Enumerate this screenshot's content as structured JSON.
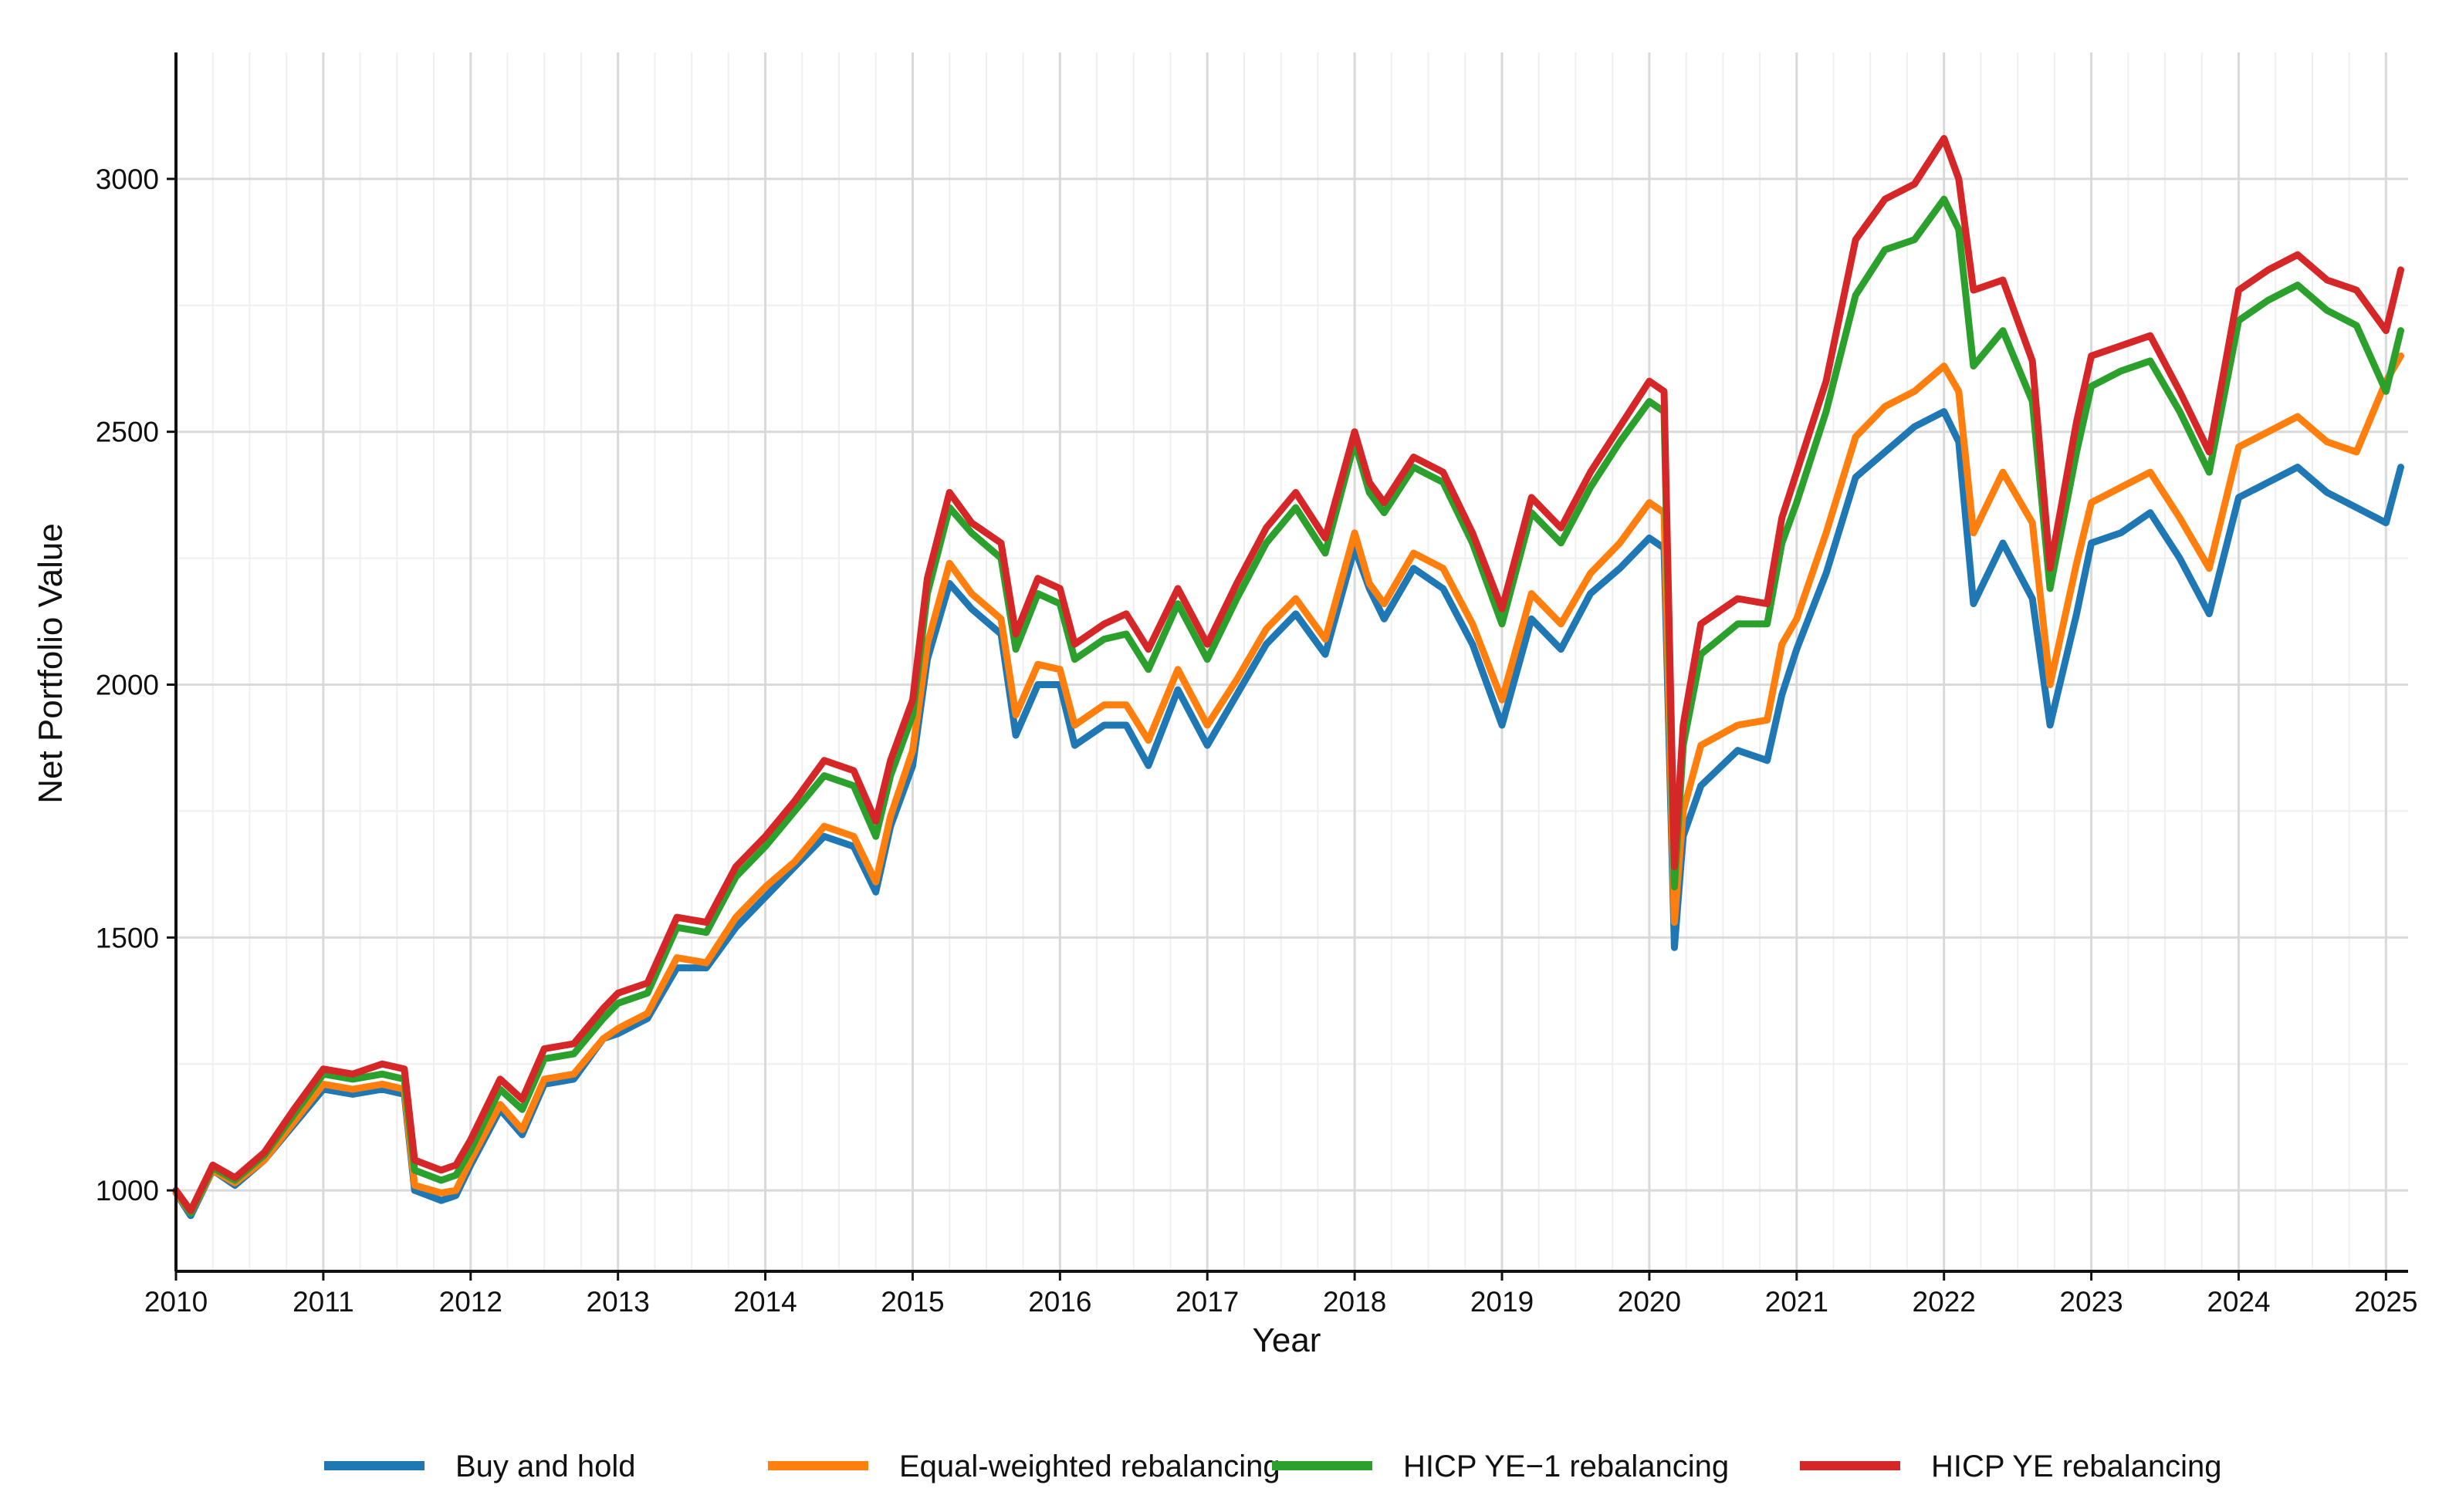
{
  "chart_data": {
    "type": "line",
    "title": "",
    "xlabel": "Year",
    "ylabel": "Net Portfolio Value",
    "xlim": [
      2010.0,
      2025.15
    ],
    "ylim": [
      840,
      3250
    ],
    "x_ticks": [
      2010,
      2011,
      2012,
      2013,
      2014,
      2015,
      2016,
      2017,
      2018,
      2019,
      2020,
      2021,
      2022,
      2023,
      2024,
      2025
    ],
    "y_ticks": [
      1000,
      1500,
      2000,
      2500,
      3000
    ],
    "grid": true,
    "legend_position": "bottom",
    "x": [
      2010.0,
      2010.1,
      2010.25,
      2010.4,
      2010.6,
      2010.8,
      2011.0,
      2011.2,
      2011.4,
      2011.55,
      2011.62,
      2011.8,
      2011.9,
      2012.0,
      2012.2,
      2012.35,
      2012.5,
      2012.7,
      2012.9,
      2013.0,
      2013.2,
      2013.4,
      2013.6,
      2013.8,
      2014.0,
      2014.2,
      2014.4,
      2014.6,
      2014.75,
      2014.85,
      2015.0,
      2015.1,
      2015.25,
      2015.4,
      2015.6,
      2015.7,
      2015.85,
      2016.0,
      2016.1,
      2016.3,
      2016.45,
      2016.6,
      2016.8,
      2017.0,
      2017.2,
      2017.4,
      2017.6,
      2017.8,
      2018.0,
      2018.1,
      2018.2,
      2018.4,
      2018.6,
      2018.8,
      2019.0,
      2019.2,
      2019.4,
      2019.6,
      2019.8,
      2020.0,
      2020.1,
      2020.17,
      2020.23,
      2020.35,
      2020.6,
      2020.8,
      2020.9,
      2021.0,
      2021.2,
      2021.4,
      2021.6,
      2021.8,
      2022.0,
      2022.1,
      2022.2,
      2022.4,
      2022.6,
      2022.72,
      2022.9,
      2023.0,
      2023.2,
      2023.4,
      2023.6,
      2023.8,
      2024.0,
      2024.2,
      2024.4,
      2024.6,
      2024.8,
      2025.0,
      2025.1
    ],
    "series": [
      {
        "name": "Buy and hold",
        "color": "#1f77b4",
        "values": [
          995,
          950,
          1040,
          1010,
          1060,
          1130,
          1200,
          1190,
          1200,
          1190,
          1000,
          980,
          990,
          1050,
          1160,
          1110,
          1210,
          1220,
          1300,
          1310,
          1340,
          1440,
          1440,
          1520,
          1580,
          1640,
          1700,
          1680,
          1590,
          1720,
          1840,
          2050,
          2200,
          2150,
          2100,
          1900,
          2000,
          2000,
          1880,
          1920,
          1920,
          1840,
          1990,
          1880,
          1980,
          2080,
          2140,
          2060,
          2270,
          2190,
          2130,
          2230,
          2190,
          2080,
          1920,
          2130,
          2070,
          2180,
          2230,
          2290,
          2270,
          1480,
          1700,
          1800,
          1870,
          1850,
          1980,
          2070,
          2220,
          2410,
          2460,
          2510,
          2540,
          2480,
          2160,
          2280,
          2170,
          1920,
          2140,
          2280,
          2300,
          2340,
          2250,
          2140,
          2370,
          2400,
          2430,
          2380,
          2350,
          2320,
          2430
        ]
      },
      {
        "name": "Equal-weighted rebalancing",
        "color": "#ff7f0e",
        "values": [
          995,
          955,
          1040,
          1015,
          1060,
          1135,
          1210,
          1200,
          1210,
          1200,
          1010,
          995,
          1000,
          1060,
          1170,
          1120,
          1220,
          1230,
          1300,
          1320,
          1350,
          1460,
          1450,
          1540,
          1600,
          1650,
          1720,
          1700,
          1610,
          1740,
          1870,
          2080,
          2240,
          2180,
          2130,
          1940,
          2040,
          2030,
          1920,
          1960,
          1960,
          1890,
          2030,
          1920,
          2010,
          2110,
          2170,
          2090,
          2300,
          2200,
          2160,
          2260,
          2230,
          2120,
          1970,
          2180,
          2120,
          2220,
          2280,
          2360,
          2340,
          1530,
          1750,
          1880,
          1920,
          1930,
          2080,
          2130,
          2300,
          2490,
          2550,
          2580,
          2630,
          2580,
          2300,
          2420,
          2320,
          2000,
          2240,
          2360,
          2390,
          2420,
          2330,
          2230,
          2470,
          2500,
          2530,
          2480,
          2460,
          2600,
          2650
        ]
      },
      {
        "name": "HICP YE−1 rebalancing",
        "color": "#2ca02c",
        "values": [
          1000,
          955,
          1045,
          1020,
          1070,
          1150,
          1230,
          1220,
          1230,
          1220,
          1040,
          1020,
          1030,
          1080,
          1200,
          1160,
          1260,
          1270,
          1340,
          1370,
          1390,
          1520,
          1510,
          1620,
          1680,
          1750,
          1820,
          1800,
          1700,
          1820,
          1940,
          2180,
          2350,
          2300,
          2250,
          2070,
          2180,
          2160,
          2050,
          2090,
          2100,
          2030,
          2160,
          2050,
          2170,
          2280,
          2350,
          2260,
          2480,
          2380,
          2340,
          2430,
          2400,
          2280,
          2120,
          2340,
          2280,
          2390,
          2480,
          2560,
          2540,
          1600,
          1880,
          2060,
          2120,
          2120,
          2280,
          2360,
          2540,
          2770,
          2860,
          2880,
          2960,
          2900,
          2630,
          2700,
          2560,
          2190,
          2460,
          2590,
          2620,
          2640,
          2540,
          2420,
          2720,
          2760,
          2790,
          2740,
          2710,
          2580,
          2700
        ]
      },
      {
        "name": "HICP YE rebalancing",
        "color": "#d62728",
        "values": [
          1000,
          960,
          1050,
          1025,
          1075,
          1160,
          1240,
          1230,
          1250,
          1240,
          1060,
          1040,
          1050,
          1100,
          1220,
          1180,
          1280,
          1290,
          1360,
          1390,
          1410,
          1540,
          1530,
          1640,
          1700,
          1770,
          1850,
          1830,
          1730,
          1850,
          1970,
          2210,
          2380,
          2320,
          2280,
          2100,
          2210,
          2190,
          2080,
          2120,
          2140,
          2070,
          2190,
          2080,
          2200,
          2310,
          2380,
          2290,
          2500,
          2400,
          2360,
          2450,
          2420,
          2300,
          2150,
          2370,
          2310,
          2420,
          2510,
          2600,
          2580,
          1640,
          1920,
          2120,
          2170,
          2160,
          2330,
          2420,
          2600,
          2880,
          2960,
          2990,
          3080,
          3000,
          2780,
          2800,
          2640,
          2230,
          2520,
          2650,
          2670,
          2690,
          2580,
          2460,
          2780,
          2820,
          2850,
          2800,
          2780,
          2700,
          2820
        ]
      }
    ]
  }
}
